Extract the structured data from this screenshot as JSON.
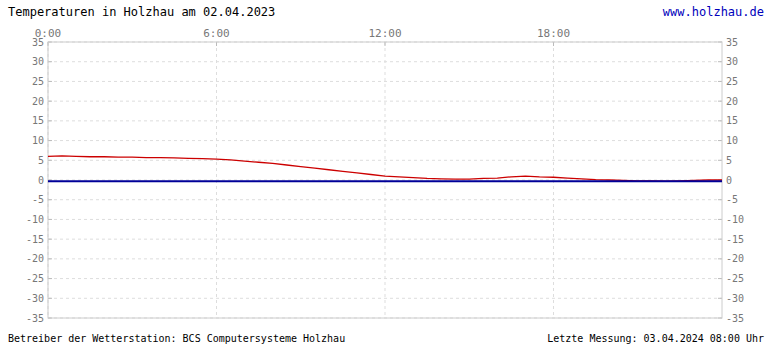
{
  "chart_data": {
    "type": "line",
    "title": "Temperaturen in Holzhau am 02.04.2023",
    "annotations": [
      {
        "text": "www.holzhau.de",
        "color": "#0000bb"
      },
      {
        "text": "Betreiber der Wetterstation: BCS Computersysteme Holzhau"
      },
      {
        "text": "Letzte Messung: 03.04.2024 08:00 Uhr"
      }
    ],
    "xlim": [
      0,
      24
    ],
    "ylim": [
      -35,
      35
    ],
    "xticks": [
      {
        "value": 0,
        "label": "0:00"
      },
      {
        "value": 6,
        "label": "6:00"
      },
      {
        "value": 12,
        "label": "12:00"
      },
      {
        "value": 18,
        "label": "18:00"
      }
    ],
    "yticks": [
      -35,
      -30,
      -25,
      -20,
      -15,
      -10,
      -5,
      0,
      5,
      10,
      15,
      20,
      25,
      30,
      35
    ],
    "grid": true,
    "series": [
      {
        "color": "#cc0000",
        "x": [
          0,
          0.5,
          1,
          1.5,
          2,
          2.5,
          3,
          3.5,
          4,
          4.5,
          5,
          5.5,
          6,
          6.5,
          7,
          7.5,
          8,
          8.5,
          9,
          9.5,
          10,
          10.5,
          11,
          11.5,
          12,
          12.5,
          13,
          13.5,
          14,
          14.5,
          15,
          15.5,
          16,
          16.5,
          17,
          17.5,
          18,
          18.5,
          19,
          19.5,
          20,
          20.5,
          21,
          21.5,
          22,
          22.5,
          23,
          23.5,
          24
        ],
        "values": [
          6.0,
          6.1,
          6.0,
          5.9,
          5.9,
          5.8,
          5.8,
          5.7,
          5.7,
          5.6,
          5.5,
          5.4,
          5.3,
          5.1,
          4.8,
          4.5,
          4.2,
          3.8,
          3.4,
          3.0,
          2.6,
          2.2,
          1.8,
          1.4,
          1.0,
          0.8,
          0.6,
          0.4,
          0.3,
          0.2,
          0.2,
          0.4,
          0.5,
          0.8,
          1.0,
          0.8,
          0.7,
          0.5,
          0.3,
          0.1,
          0.0,
          -0.1,
          -0.2,
          -0.2,
          -0.3,
          -0.2,
          -0.1,
          0.0,
          0.0
        ]
      },
      {
        "color": "#000099",
        "x": [
          0,
          6,
          12,
          18,
          24
        ],
        "values": [
          -0.3,
          -0.3,
          -0.3,
          -0.3,
          -0.3
        ]
      }
    ]
  }
}
